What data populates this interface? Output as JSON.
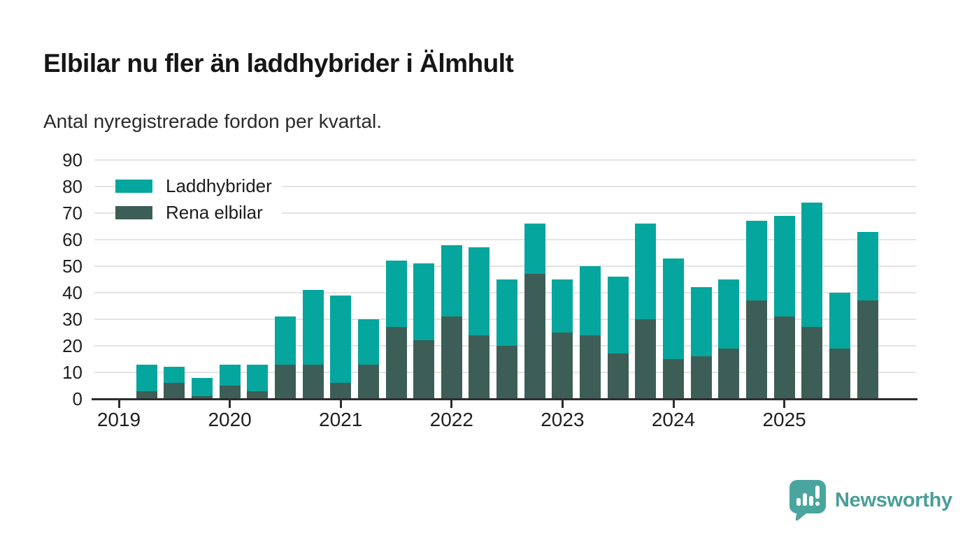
{
  "header": {
    "title": "Elbilar nu fler än laddhybrider i Älmhult",
    "subtitle": "Antal nyregistrerade fordon per kvartal."
  },
  "legend": {
    "items": [
      {
        "label": "Laddhybrider",
        "color": "#05a69d"
      },
      {
        "label": "Rena elbilar",
        "color": "#3d5e56"
      }
    ]
  },
  "footer": {
    "brand": "Newsworthy",
    "logo_icon": "speech-bubble-bar-chart-icon",
    "brand_color": "#4a9e99",
    "logo_bubble_color": "#4aa59f"
  },
  "colors": {
    "laddhybrider": "#05a69d",
    "rena_elbilar": "#3d5e56",
    "axis": "#2d2d2d",
    "grid": "#e4e4e4",
    "text": "#1f1f1f"
  },
  "chart_data": {
    "type": "bar",
    "stacked": true,
    "title": "Elbilar nu fler än laddhybrider i Älmhult",
    "subtitle": "Antal nyregistrerade fordon per kvartal.",
    "xlabel": "",
    "ylabel": "",
    "ylim": [
      0,
      90
    ],
    "yticks": [
      0,
      10,
      20,
      30,
      40,
      50,
      60,
      70,
      80,
      90
    ],
    "grid": "horizontal",
    "legend_position": "top-left",
    "x": [
      "2019 K1",
      "2019 K2",
      "2019 K3",
      "2019 K4",
      "2020 K1",
      "2020 K2",
      "2020 K3",
      "2020 K4",
      "2021 K1",
      "2021 K2",
      "2021 K3",
      "2021 K4",
      "2022 K1",
      "2022 K2",
      "2022 K3",
      "2022 K4",
      "2023 K1",
      "2023 K2",
      "2023 K3",
      "2023 K4",
      "2024 K1",
      "2024 K2",
      "2024 K3",
      "2024 K4",
      "2025 K1",
      "2025 K2",
      "2025 K3",
      "2025 K4"
    ],
    "x_tick_labels": [
      "2019",
      "2020",
      "2021",
      "2022",
      "2023",
      "2024",
      "2025"
    ],
    "series": [
      {
        "name": "Rena elbilar",
        "color": "#3d5e56",
        "values": [
          0,
          3,
          6,
          1,
          5,
          3,
          13,
          13,
          6,
          13,
          27,
          22,
          31,
          24,
          20,
          47,
          25,
          24,
          17,
          30,
          15,
          16,
          19,
          37,
          31,
          27,
          19,
          37
        ]
      },
      {
        "name": "Laddhybrider",
        "color": "#05a69d",
        "values": [
          0,
          10,
          6,
          7,
          8,
          10,
          18,
          28,
          33,
          17,
          25,
          29,
          27,
          33,
          25,
          19,
          20,
          26,
          29,
          36,
          38,
          26,
          26,
          30,
          38,
          47,
          21,
          26
        ]
      }
    ],
    "totals": [
      0,
      13,
      12,
      8,
      13,
      13,
      31,
      41,
      39,
      30,
      52,
      51,
      58,
      57,
      45,
      66,
      45,
      50,
      46,
      66,
      53,
      42,
      45,
      67,
      69,
      74,
      40,
      63
    ]
  }
}
